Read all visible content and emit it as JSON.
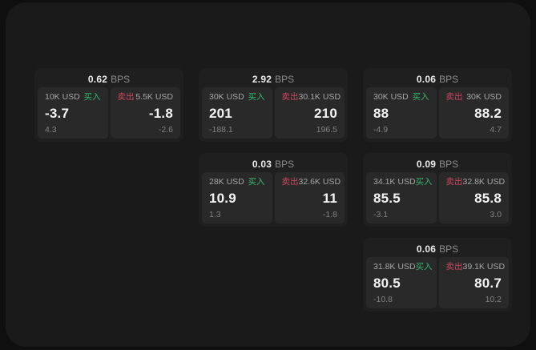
{
  "colors": {
    "buy_accent": "#36b56f",
    "sell_accent": "#c9485e",
    "panel_bg": "#1a1a1a",
    "card_bg": "#1f1f1f",
    "pane_bg": "#292929"
  },
  "bps_unit_label": "BPS",
  "cards": [
    {
      "row": 0,
      "col": 0,
      "bps_value": "0.62",
      "bps_unit": "BPS",
      "buy": {
        "amount": "10K USD",
        "side_label": "买入",
        "value": "-3.7",
        "delta": "4.3"
      },
      "sell": {
        "amount": "5.5K USD",
        "side_label": "卖出",
        "value": "-1.8",
        "delta": "-2.6"
      }
    },
    {
      "row": 0,
      "col": 1,
      "bps_value": "2.92",
      "bps_unit": "BPS",
      "buy": {
        "amount": "30K USD",
        "side_label": "买入",
        "value": "201",
        "delta": "-188.1"
      },
      "sell": {
        "amount": "30.1K USD",
        "side_label": "卖出",
        "value": "210",
        "delta": "196.5"
      }
    },
    {
      "row": 0,
      "col": 2,
      "bps_value": "0.06",
      "bps_unit": "BPS",
      "buy": {
        "amount": "30K USD",
        "side_label": "买入",
        "value": "88",
        "delta": "-4.9"
      },
      "sell": {
        "amount": "30K USD",
        "side_label": "卖出",
        "value": "88.2",
        "delta": "4.7"
      }
    },
    {
      "row": 1,
      "col": 1,
      "bps_value": "0.03",
      "bps_unit": "BPS",
      "buy": {
        "amount": "28K USD",
        "side_label": "买入",
        "value": "10.9",
        "delta": "1.3"
      },
      "sell": {
        "amount": "32.6K USD",
        "side_label": "卖出",
        "value": "11",
        "delta": "-1.8"
      }
    },
    {
      "row": 1,
      "col": 2,
      "bps_value": "0.09",
      "bps_unit": "BPS",
      "buy": {
        "amount": "34.1K USD",
        "side_label": "买入",
        "value": "85.5",
        "delta": "-3.1"
      },
      "sell": {
        "amount": "32.8K USD",
        "side_label": "卖出",
        "value": "85.8",
        "delta": "3.0"
      }
    },
    {
      "row": 2,
      "col": 2,
      "bps_value": "0.06",
      "bps_unit": "BPS",
      "buy": {
        "amount": "31.8K USD",
        "side_label": "买入",
        "value": "80.5",
        "delta": "-10.8"
      },
      "sell": {
        "amount": "39.1K USD",
        "side_label": "卖出",
        "value": "80.7",
        "delta": "10.2"
      }
    }
  ]
}
